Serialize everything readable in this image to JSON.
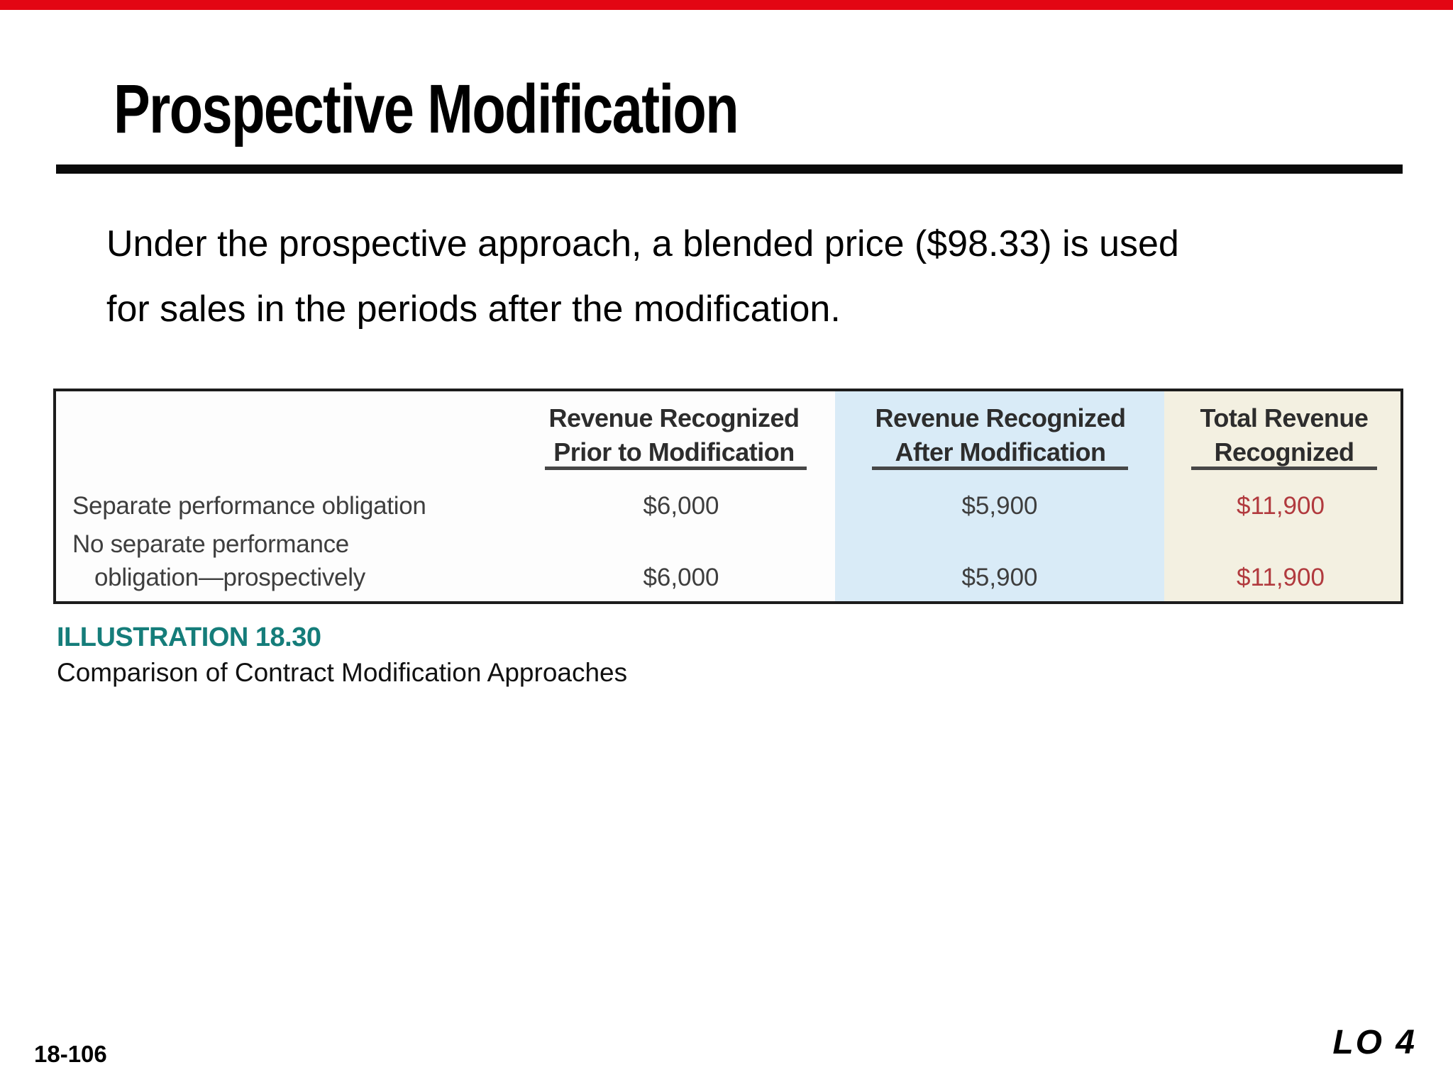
{
  "slide": {
    "title": "Prospective Modification",
    "body_lines": [
      "Under the prospective approach, a blended price ($98.33) is used",
      "for sales in the periods after the modification."
    ],
    "caption_label": "ILLUSTRATION 18.30",
    "caption_text": "Comparison of Contract Modification Approaches",
    "page_number": "18-106",
    "learning_objective": "LO 4"
  },
  "table": {
    "headers": [
      {
        "line1": "Revenue Recognized",
        "line2": "Prior to Modification"
      },
      {
        "line1": "Revenue Recognized",
        "line2": "After Modification"
      },
      {
        "line1": "Total Revenue",
        "line2": "Recognized"
      }
    ],
    "rows": [
      {
        "label_lines": [
          "Separate performance obligation"
        ],
        "values": [
          "$6,000",
          "$5,900",
          "$11,900"
        ]
      },
      {
        "label_lines": [
          "No separate performance",
          "obligation—prospectively"
        ],
        "values": [
          "$6,000",
          "$5,900",
          "$11,900"
        ]
      }
    ]
  },
  "colors": {
    "accent_red": "#e30613",
    "title_rule_black": "#0a0a0a",
    "column_blue": "#d9ebf7",
    "column_cream": "#f3f0e1",
    "total_value_red": "#b13a3e",
    "caption_teal": "#157d7a",
    "table_border": "#1c1c1c"
  }
}
